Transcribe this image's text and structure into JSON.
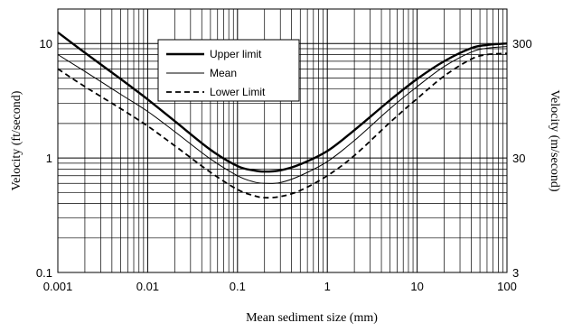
{
  "chart_data": {
    "type": "line",
    "title": "",
    "xlabel": "Mean sediment size (mm)",
    "ylabel": "Velocity (ft/second)",
    "y2label": "Velocity (m/second)",
    "xscale": "log",
    "yscale": "log",
    "xlim": [
      0.001,
      100
    ],
    "ylim": [
      0.1,
      20
    ],
    "y2lim": [
      3,
      600
    ],
    "x_ticks": [
      {
        "value": 0.001,
        "label": "0.001"
      },
      {
        "value": 0.01,
        "label": "0.01"
      },
      {
        "value": 0.1,
        "label": "0.1"
      },
      {
        "value": 1,
        "label": "1"
      },
      {
        "value": 10,
        "label": "10"
      },
      {
        "value": 100,
        "label": "100"
      }
    ],
    "y_ticks": [
      {
        "value": 0.1,
        "label": "0.1"
      },
      {
        "value": 1,
        "label": "1"
      },
      {
        "value": 10,
        "label": "10"
      }
    ],
    "y2_ticks": [
      {
        "value": 3,
        "label": "3"
      },
      {
        "value": 30,
        "label": "30"
      },
      {
        "value": 300,
        "label": "300"
      }
    ],
    "grid": true,
    "legend_position": "top-center",
    "series": [
      {
        "name": "Upper limit",
        "line_style": "thick-solid",
        "x": [
          0.001,
          0.002,
          0.005,
          0.01,
          0.02,
          0.05,
          0.1,
          0.15,
          0.2,
          0.3,
          0.5,
          1,
          2,
          5,
          10,
          20,
          40,
          60,
          100
        ],
        "y": [
          12.5,
          8.3,
          4.9,
          3.25,
          2.1,
          1.18,
          0.85,
          0.78,
          0.76,
          0.78,
          0.88,
          1.15,
          1.75,
          3.2,
          4.9,
          7.0,
          9.1,
          9.7,
          10.0
        ]
      },
      {
        "name": "Mean",
        "line_style": "thin-solid",
        "x": [
          0.001,
          0.002,
          0.005,
          0.01,
          0.02,
          0.05,
          0.1,
          0.15,
          0.2,
          0.3,
          0.5,
          1,
          2,
          5,
          10,
          20,
          40,
          60,
          100
        ],
        "y": [
          8.0,
          5.7,
          3.6,
          2.55,
          1.7,
          0.98,
          0.7,
          0.62,
          0.6,
          0.61,
          0.7,
          0.93,
          1.42,
          2.7,
          4.2,
          6.3,
          8.4,
          9.1,
          9.4
        ]
      },
      {
        "name": "Lower Limit",
        "line_style": "dashed",
        "x": [
          0.001,
          0.002,
          0.005,
          0.01,
          0.02,
          0.05,
          0.1,
          0.15,
          0.2,
          0.3,
          0.5,
          1,
          2,
          5,
          10,
          20,
          40,
          60,
          100
        ],
        "y": [
          6.0,
          4.2,
          2.7,
          1.9,
          1.28,
          0.75,
          0.53,
          0.47,
          0.45,
          0.46,
          0.52,
          0.7,
          1.05,
          2.05,
          3.3,
          5.2,
          7.3,
          8.0,
          8.2
        ]
      }
    ]
  }
}
